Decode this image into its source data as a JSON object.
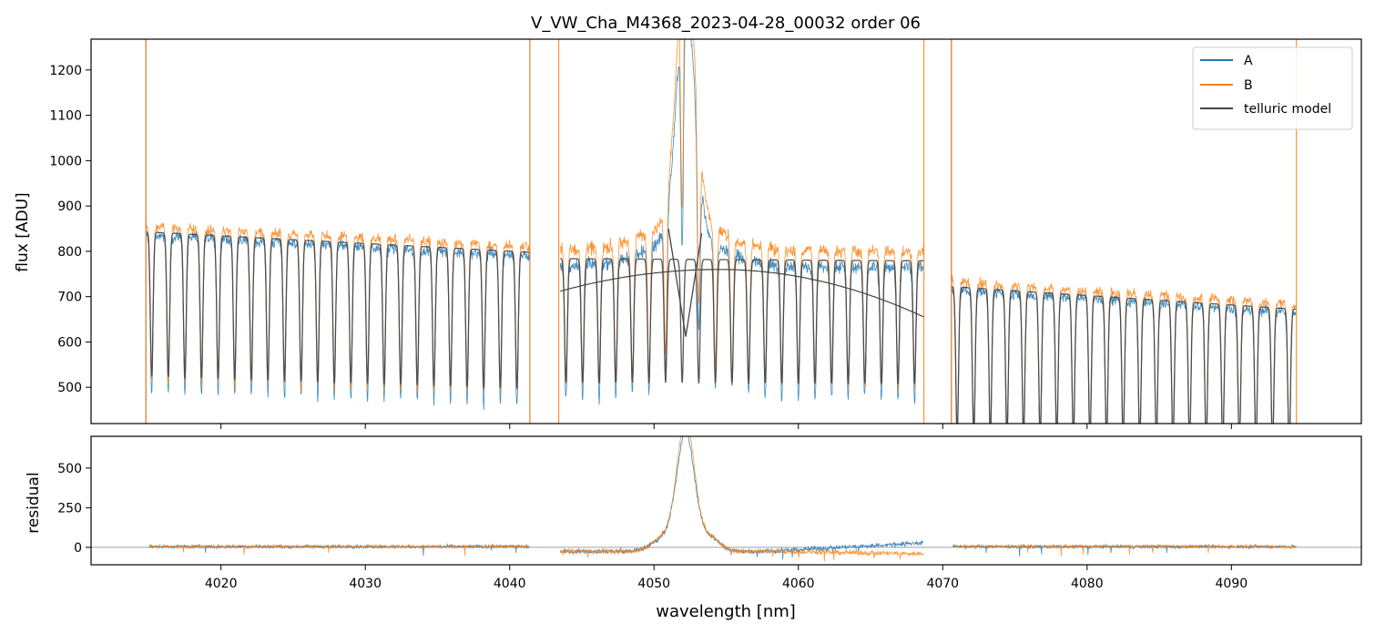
{
  "colors": {
    "A": "#1f77b4",
    "B": "#ff7f0e",
    "telluric": "#444444",
    "zero_line": "#808080"
  },
  "chart_data": {
    "type": "line",
    "title": "V_VW_Cha_M4368_2023-04-28_00032  order 06",
    "xlabel": "wavelength [nm]",
    "xlim": [
      4011,
      4099
    ],
    "x_ticks": [
      4020,
      4030,
      4040,
      4050,
      4060,
      4070,
      4080,
      4090
    ],
    "x_tick_labels": [
      "4020",
      "4030",
      "4040",
      "4050",
      "4060",
      "4070",
      "4080",
      "4090"
    ],
    "grid": false,
    "legend_location": "top-right",
    "legend": [
      "A",
      "B",
      "telluric model"
    ],
    "panels": [
      {
        "id": "flux",
        "ylabel": "flux [ADU]",
        "ylim": [
          420,
          1268
        ],
        "y_ticks": [
          500,
          600,
          700,
          800,
          900,
          1000,
          1100,
          1200
        ],
        "y_tick_labels": [
          "500",
          "600",
          "700",
          "800",
          "900",
          "1000",
          "1100",
          "1200"
        ],
        "segments": [
          {
            "x": [
              4014.8,
              4041.4
            ],
            "continuum": [
              835,
              790
            ],
            "line_depth": 0.38,
            "B_offset": 20,
            "noise": 12
          },
          {
            "x": [
              4043.5,
              4068.7
            ],
            "continuum": [
              770,
              765
            ],
            "line_depth": 0.35,
            "B_offset": 35,
            "noise": 15
          },
          {
            "x": [
              4070.6,
              4094.5
            ],
            "continuum": [
              715,
              665
            ],
            "line_depth": 0.45,
            "B_offset": 18,
            "noise": 12
          }
        ],
        "emission_line": {
          "center": 4052.2,
          "width": 0.9,
          "peak": 1300
        },
        "telluric_line_spacing": 1.15,
        "smooth_curve": {
          "x": [
            4043.5,
            4054.5,
            4068.7
          ],
          "y": [
            712,
            760,
            655
          ]
        },
        "telluric_dip": {
          "x": [
            4051.0,
            4052.2,
            4053.3
          ],
          "y": [
            850,
            612,
            840
          ]
        },
        "spikes": [
          {
            "x": 4014.8,
            "series": "A"
          },
          {
            "x": 4014.8,
            "series": "B"
          },
          {
            "x": 4041.4,
            "series": "A"
          },
          {
            "x": 4041.4,
            "series": "B"
          },
          {
            "x": 4043.4,
            "series": "B"
          },
          {
            "x": 4068.7,
            "series": "B"
          },
          {
            "x": 4070.6,
            "series": "A"
          },
          {
            "x": 4070.6,
            "series": "B"
          },
          {
            "x": 4094.5,
            "series": "B"
          }
        ]
      },
      {
        "id": "residual",
        "ylabel": "residual",
        "ylim": [
          -110,
          700
        ],
        "y_ticks": [
          0,
          250,
          500
        ],
        "y_tick_labels": [
          "0",
          "250",
          "500"
        ],
        "zero_line": 0,
        "segments": [
          {
            "x": [
              4015.0,
              4041.4
            ],
            "baseline": 5,
            "noise": 10
          },
          {
            "x": [
              4043.5,
              4068.7
            ],
            "baseline": -25,
            "noise": 15
          },
          {
            "x": [
              4070.7,
              4094.5
            ],
            "baseline": 5,
            "noise": 10
          }
        ],
        "emission_peak": {
          "center": 4052.2,
          "width": 0.85,
          "peak": 760
        },
        "series": [
          "A",
          "B"
        ]
      }
    ]
  }
}
